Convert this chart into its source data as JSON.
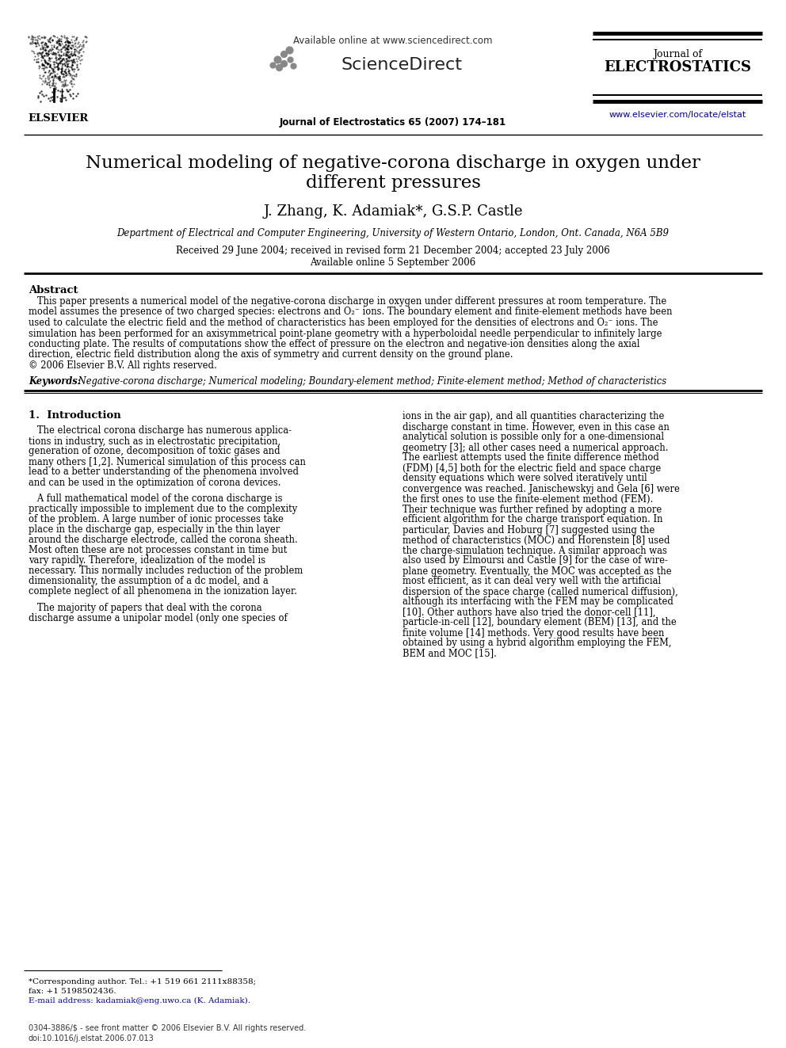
{
  "title_line1": "Numerical modeling of negative-corona discharge in oxygen under",
  "title_line2": "different pressures",
  "authors": "J. Zhang, K. Adamiak*, G.S.P. Castle",
  "affiliation": "Department of Electrical and Computer Engineering, University of Western Ontario, London, Ont. Canada, N6A 5B9",
  "received": "Received 29 June 2004; received in revised form 21 December 2004; accepted 23 July 2006",
  "available_online_date": "Available online 5 September 2006",
  "available_header": "Available online at www.sciencedirect.com",
  "journal_ref": "Journal of Electrostatics 65 (2007) 174–181",
  "journal_name_top": "Journal of",
  "journal_name_bottom": "ELECTROSTATICS",
  "url": "www.elsevier.com/locate/elstat",
  "elsevier_text": "ELSEVIER",
  "abstract_title": "Abstract",
  "keywords_label": "Keywords:",
  "keywords_text": " Negative-corona discharge; Numerical modeling; Boundary-element method; Finite-element method; Method of characteristics",
  "section1_title": "1.  Introduction",
  "section1_left_paras": [
    "   The electrical corona discharge has numerous applica-\ntions in industry, such as in electrostatic precipitation,\ngeneration of ozone, decomposition of toxic gases and\nmany others [1,2]. Numerical simulation of this process can\nlead to a better understanding of the phenomena involved\nand can be used in the optimization of corona devices.",
    "   A full mathematical model of the corona discharge is\npractically impossible to implement due to the complexity\nof the problem. A large number of ionic processes take\nplace in the discharge gap, especially in the thin layer\naround the discharge electrode, called the corona sheath.\nMost often these are not processes constant in time but\nvary rapidly. Therefore, idealization of the model is\nnecessary. This normally includes reduction of the problem\ndimensionality, the assumption of a dc model, and a\ncomplete neglect of all phenomena in the ionization layer.",
    "   The majority of papers that deal with the corona\ndischarge assume a unipolar model (only one species of"
  ],
  "section1_right_text": "ions in the air gap), and all quantities characterizing the\ndischarge constant in time. However, even in this case an\nanalytical solution is possible only for a one-dimensional\ngeometry [3]; all other cases need a numerical approach.\nThe earliest attempts used the finite difference method\n(FDM) [4,5] both for the electric field and space charge\ndensity equations which were solved iteratively until\nconvergence was reached. Janischewskyj and Gela [6] were\nthe first ones to use the finite-element method (FEM).\nTheir technique was further refined by adopting a more\nefficient algorithm for the charge transport equation. In\nparticular, Davies and Hoburg [7] suggested using the\nmethod of characteristics (MOC) and Horenstein [8] used\nthe charge-simulation technique. A similar approach was\nalso used by Elmoursi and Castle [9] for the case of wire-\nplane geometry. Eventually, the MOC was accepted as the\nmost efficient, as it can deal very well with the artificial\ndispersion of the space charge (called numerical diffusion),\nalthough its interfacing with the FEM may be complicated\n[10]. Other authors have also tried the donor-cell [11],\nparticle-in-cell [12], boundary element (BEM) [13], and the\nfinite volume [14] methods. Very good results have been\nobtained by using a hybrid algorithm employing the FEM,\nBEM and MOC [15].",
  "abstract_lines": [
    "   This paper presents a numerical model of the negative-corona discharge in oxygen under different pressures at room temperature. The",
    "model assumes the presence of two charged species: electrons and O₂⁻ ions. The boundary element and finite-element methods have been",
    "used to calculate the electric field and the method of characteristics has been employed for the densities of electrons and O₂⁻ ions. The",
    "simulation has been performed for an axisymmetrical point-plane geometry with a hyperboloidal needle perpendicular to infinitely large",
    "conducting plate. The results of computations show the effect of pressure on the electron and negative-ion densities along the axial",
    "direction, electric field distribution along the axis of symmetry and current density on the ground plane.",
    "© 2006 Elsevier B.V. All rights reserved."
  ],
  "footnote1": "*Corresponding author. Tel.: +1 519 661 2111x88358;",
  "footnote2": "fax: +1 5198502436.",
  "footnote3": "E-mail address: kadamiak@eng.uwo.ca (K. Adamiak).",
  "footer1": "0304-3886/$ - see front matter © 2006 Elsevier B.V. All rights reserved.",
  "footer2": "doi:10.1016/j.elstat.2006.07.013",
  "bg_color": "#ffffff",
  "text_color": "#000000",
  "link_color": "#0000bb"
}
